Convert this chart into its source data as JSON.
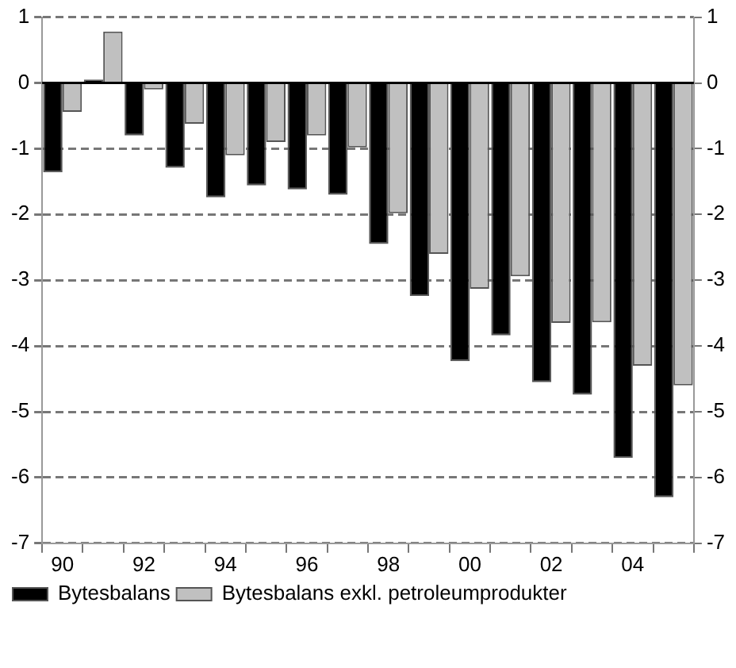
{
  "chart_data": {
    "type": "bar",
    "categories": [
      "90",
      null,
      "92",
      null,
      "94",
      null,
      "96",
      null,
      "98",
      null,
      "00",
      null,
      "02",
      null,
      "04",
      null
    ],
    "series": [
      {
        "name": "Bytesbalans",
        "color": "#000000",
        "values": [
          -1.36,
          0.05,
          -0.8,
          -1.29,
          -1.74,
          -1.56,
          -1.62,
          -1.7,
          -2.45,
          -3.24,
          -4.23,
          -3.84,
          -4.55,
          -4.74,
          -5.7,
          -6.3
        ]
      },
      {
        "name": "Bytesbalans exkl. petroleumprodukter",
        "color": "#c0c0c0",
        "values": [
          -0.44,
          0.78,
          -0.1,
          -0.62,
          -1.1,
          -0.9,
          -0.8,
          -0.98,
          -1.98,
          -2.6,
          -3.13,
          -2.94,
          -3.65,
          -3.64,
          -4.3,
          -4.6
        ]
      }
    ],
    "ylim": [
      -7,
      1
    ],
    "yticks": [
      -7,
      -6,
      -5,
      -4,
      -3,
      -2,
      -1,
      0,
      1
    ],
    "y2lim": [
      -7,
      1
    ],
    "y2ticks": [
      -7,
      -6,
      -5,
      -4,
      -3,
      -2,
      -1,
      0,
      1
    ],
    "grid": "y",
    "legend": "bottom"
  }
}
